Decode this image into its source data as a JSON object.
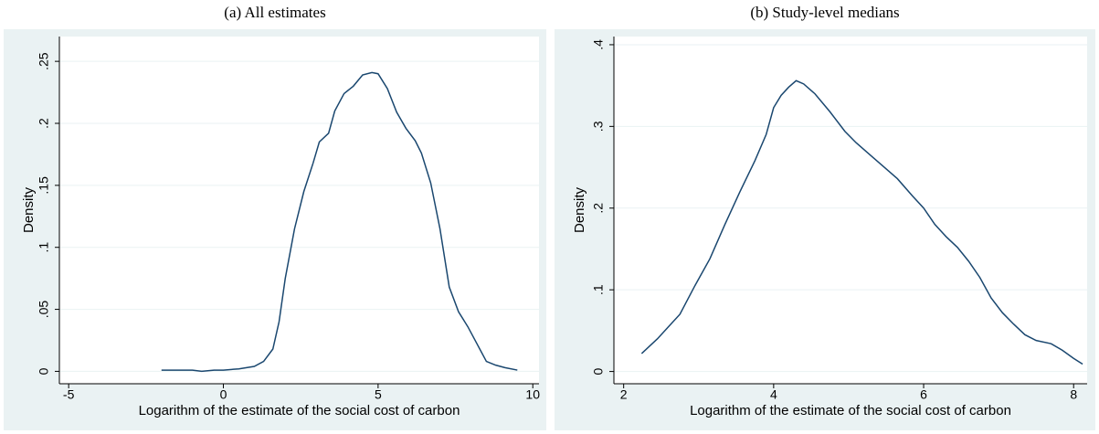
{
  "chart_data": [
    {
      "type": "line",
      "title": "(a) All estimates",
      "xlabel": "Logarithm of the estimate of the social cost of carbon",
      "ylabel": "Density",
      "color": "#1a476f",
      "grid": true,
      "x": [
        -2,
        -1.5,
        -1,
        -0.7,
        -0.3,
        0,
        0.5,
        1,
        1.3,
        1.6,
        1.8,
        2,
        2.3,
        2.6,
        2.9,
        3.1,
        3.4,
        3.6,
        3.9,
        4.2,
        4.5,
        4.8,
        5,
        5.3,
        5.6,
        5.9,
        6.2,
        6.4,
        6.7,
        7,
        7.3,
        7.6,
        7.9,
        8.2,
        8.5,
        8.8,
        9.1,
        9.5
      ],
      "values": [
        0.001,
        0.001,
        0.001,
        0,
        0.001,
        0.001,
        0.002,
        0.004,
        0.008,
        0.018,
        0.04,
        0.075,
        0.115,
        0.145,
        0.168,
        0.185,
        0.192,
        0.21,
        0.224,
        0.23,
        0.239,
        0.241,
        0.24,
        0.228,
        0.209,
        0.196,
        0.186,
        0.176,
        0.152,
        0.115,
        0.068,
        0.048,
        0.036,
        0.022,
        0.008,
        0.005,
        0.003,
        0.001
      ],
      "xlim": [
        -5.3,
        10.2
      ],
      "xticks": [
        -5,
        0,
        5,
        10
      ],
      "ylim": [
        -0.01,
        0.27
      ],
      "yticks": [
        0,
        {
          "value": 0.05,
          "label": ".05"
        },
        {
          "value": 0.1,
          "label": ".1"
        },
        {
          "value": 0.15,
          "label": ".15"
        },
        {
          "value": 0.2,
          "label": ".2"
        },
        {
          "value": 0.25,
          "label": ".25"
        }
      ]
    },
    {
      "type": "line",
      "title": "(b) Study-level medians",
      "xlabel": "Logarithm of the estimate of the social cost of carbon",
      "ylabel": "Density",
      "color": "#1a476f",
      "grid": true,
      "x": [
        2.24,
        2.45,
        2.6,
        2.75,
        2.95,
        3.15,
        3.35,
        3.55,
        3.75,
        3.9,
        4.0,
        4.1,
        4.2,
        4.3,
        4.4,
        4.55,
        4.75,
        4.95,
        5.1,
        5.3,
        5.5,
        5.65,
        5.85,
        6.0,
        6.15,
        6.3,
        6.45,
        6.6,
        6.75,
        6.9,
        7.05,
        7.2,
        7.35,
        7.5,
        7.7,
        7.85,
        8.0,
        8.12
      ],
      "values": [
        0.022,
        0.04,
        0.055,
        0.07,
        0.105,
        0.138,
        0.18,
        0.22,
        0.258,
        0.29,
        0.323,
        0.338,
        0.348,
        0.356,
        0.352,
        0.34,
        0.318,
        0.294,
        0.28,
        0.264,
        0.248,
        0.236,
        0.215,
        0.2,
        0.18,
        0.165,
        0.152,
        0.135,
        0.115,
        0.09,
        0.072,
        0.058,
        0.045,
        0.038,
        0.034,
        0.026,
        0.016,
        0.009
      ],
      "xlim": [
        1.87,
        8.18
      ],
      "xticks": [
        2,
        4,
        6,
        8
      ],
      "ylim": [
        -0.015,
        0.41
      ],
      "yticks": [
        0,
        {
          "value": 0.1,
          "label": ".1"
        },
        {
          "value": 0.2,
          "label": ".2"
        },
        {
          "value": 0.3,
          "label": ".3"
        },
        {
          "value": 0.4,
          "label": ".4"
        }
      ]
    }
  ]
}
